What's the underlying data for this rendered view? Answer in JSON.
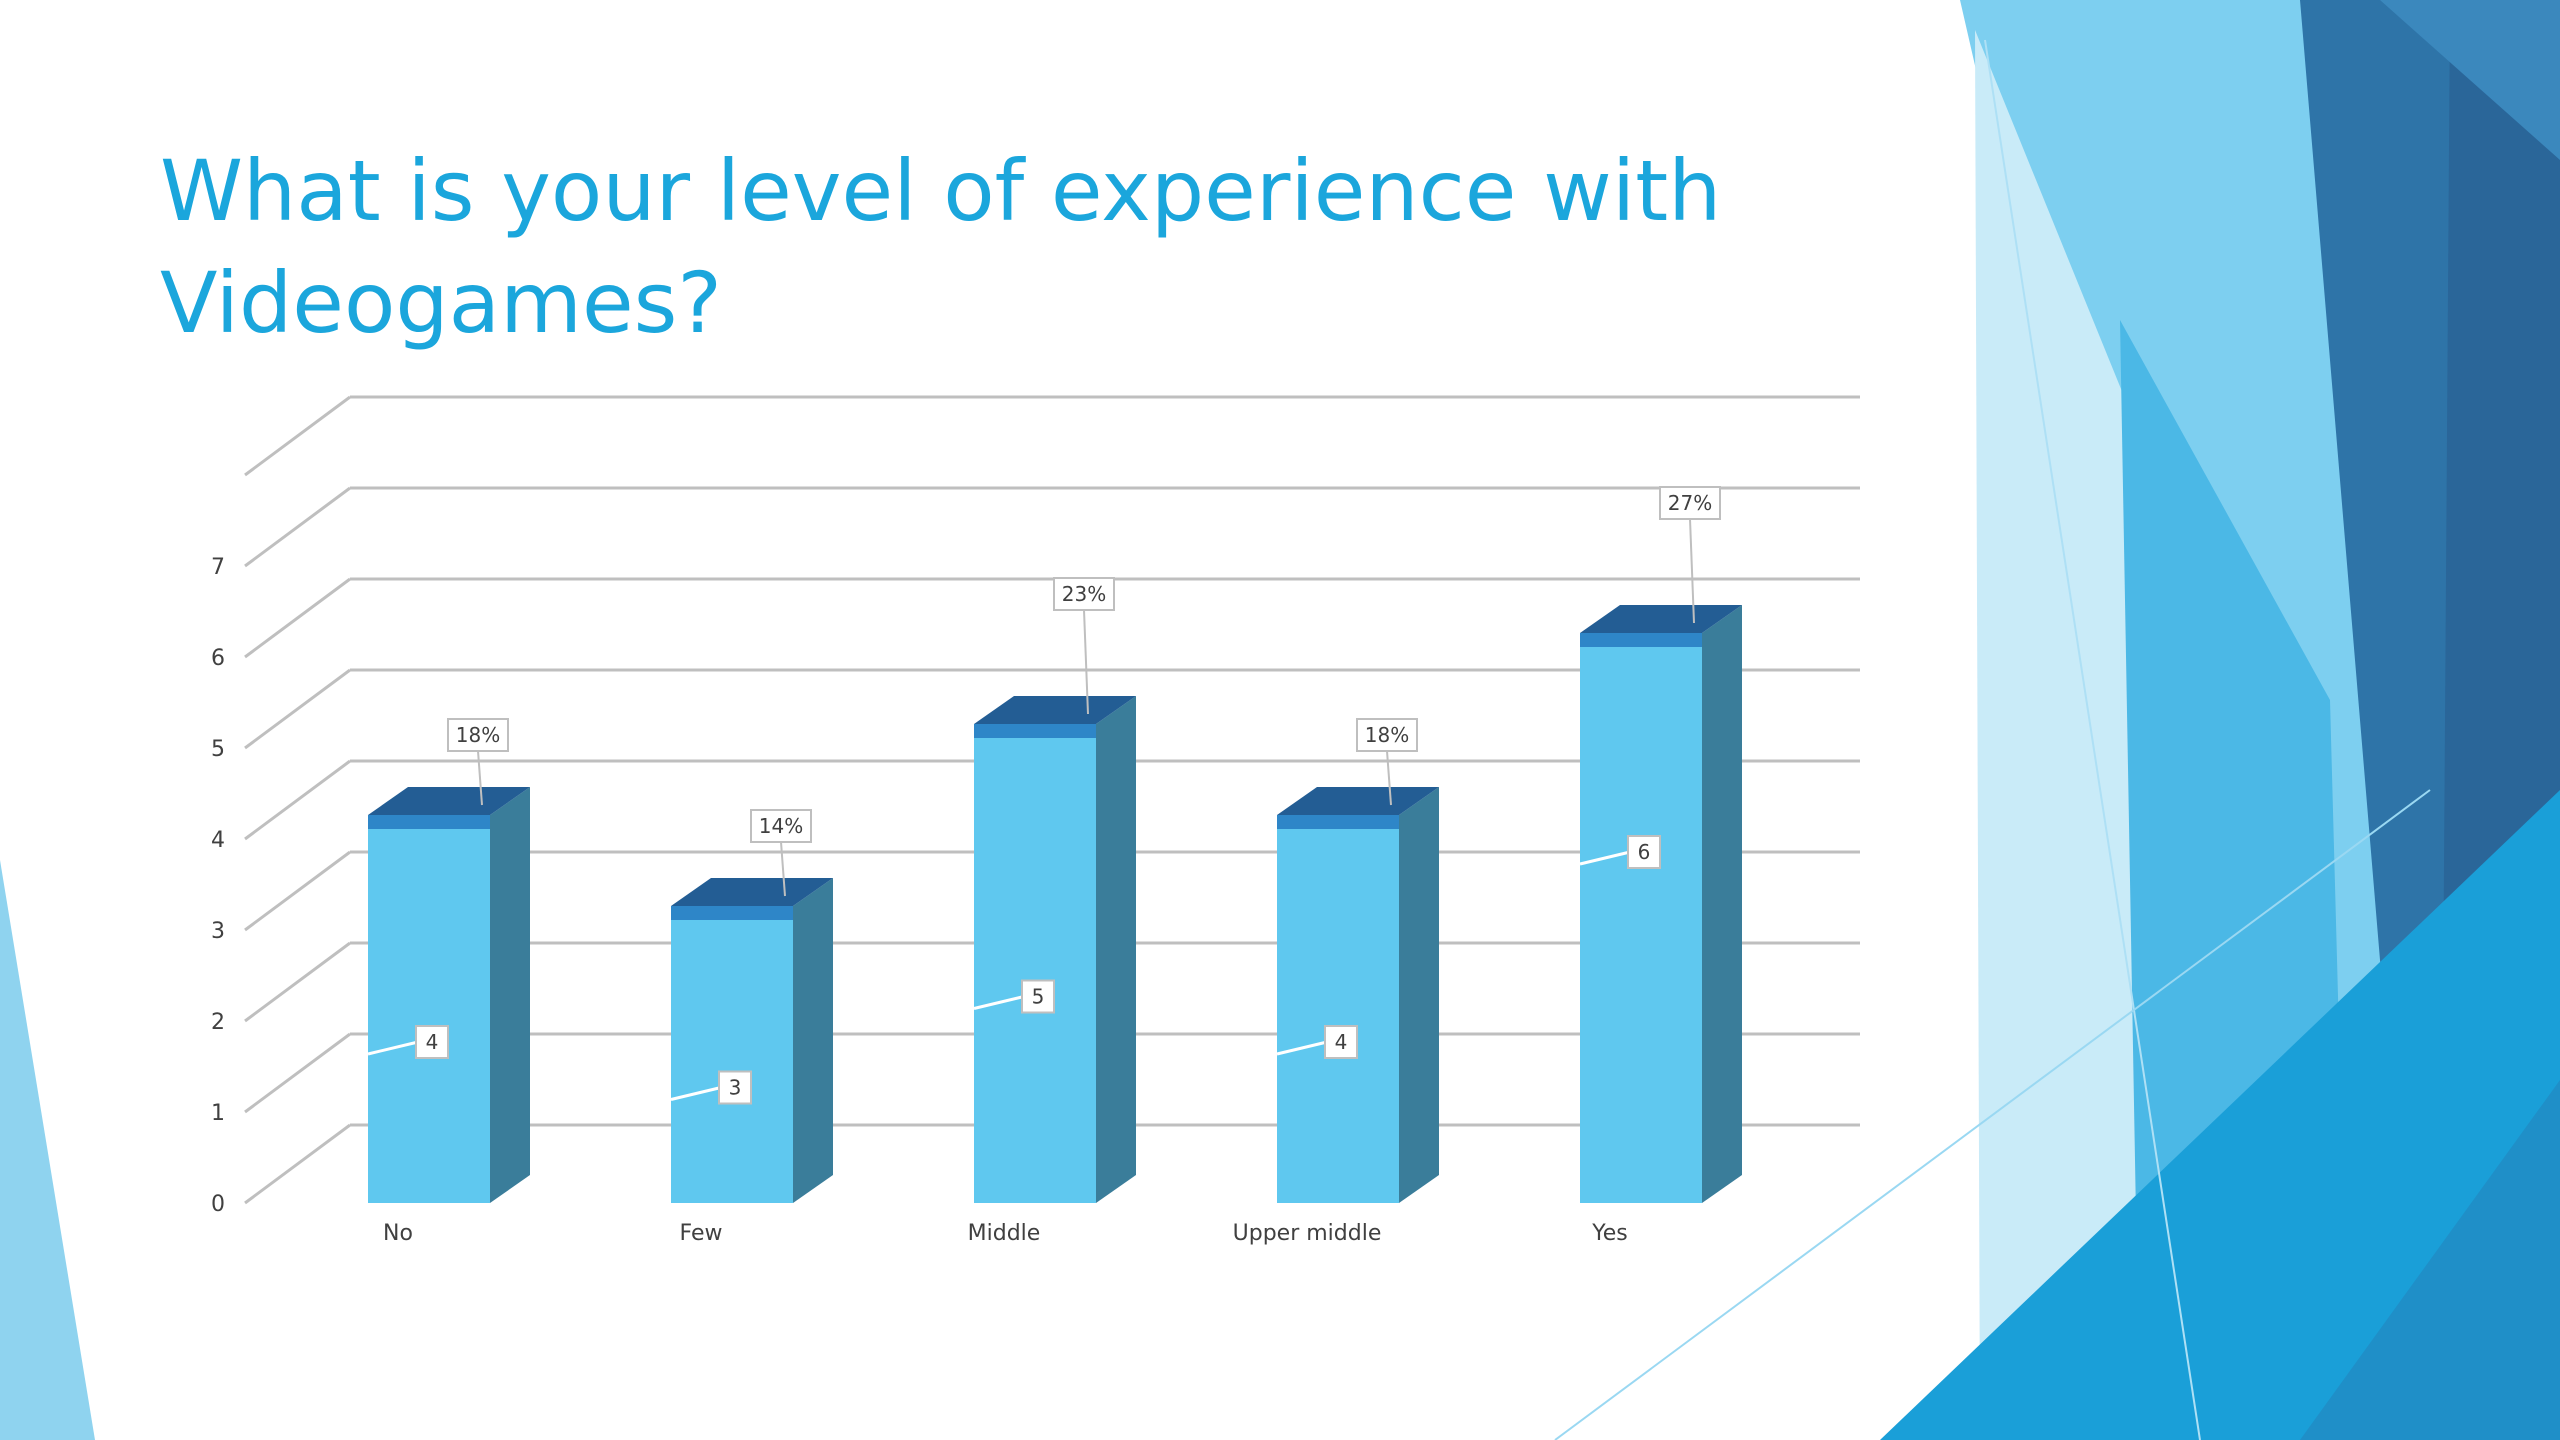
{
  "slide": {
    "title": "What is your level of experience with Videogames?"
  },
  "colors": {
    "title": "#1ba6dc",
    "bar_front": "#5fc8ef",
    "bar_side": "#3a7d9a",
    "bar_cap": "#2e86c8",
    "bar_top": "#235d94",
    "grid": "#bfbfbf"
  },
  "chart_data": {
    "type": "bar",
    "style": "3d-column",
    "categories": [
      "No",
      "Few",
      "Middle",
      "Upper middle",
      "Yes"
    ],
    "values": [
      4,
      3,
      5,
      4,
      6
    ],
    "value_labels": [
      "4",
      "3",
      "5",
      "4",
      "6"
    ],
    "percent_labels": [
      "18%",
      "14%",
      "23%",
      "18%",
      "27%"
    ],
    "title": "",
    "xlabel": "",
    "ylabel": "",
    "ylim": [
      0,
      8
    ],
    "yticks": [
      0,
      1,
      2,
      3,
      4,
      5,
      6,
      7
    ],
    "grid": true,
    "legend": "none"
  }
}
